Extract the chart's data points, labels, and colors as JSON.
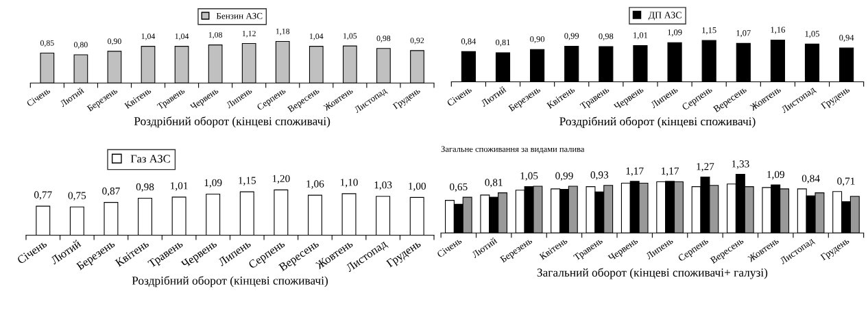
{
  "chart_data": [
    {
      "type": "bar",
      "xlabel": "Роздрібний оборот (кінцеві споживачі)",
      "categories": [
        "Січень",
        "Лютий",
        "Березень",
        "Квітень",
        "Травень",
        "Червень",
        "Липень",
        "Серпень",
        "Вересень",
        "Жовтень",
        "Листопад",
        "Грудень"
      ],
      "legend": "top",
      "series": [
        {
          "name": "Бензин АЗС",
          "color": "#c0c0c0",
          "values": [
            0.85,
            0.8,
            0.9,
            1.04,
            1.04,
            1.08,
            1.12,
            1.18,
            1.04,
            1.05,
            0.98,
            0.92
          ],
          "value_labels": [
            "0,85",
            "0,80",
            "0,90",
            "1,04",
            "1,04",
            "1,08",
            "1,12",
            "1,18",
            "1,04",
            "1,05",
            "0,98",
            "0,92"
          ]
        }
      ]
    },
    {
      "type": "bar",
      "xlabel": "Роздрібний оборот (кінцеві споживачі)",
      "categories": [
        "Січень",
        "Лютий",
        "Березень",
        "Квітень",
        "Травень",
        "Червень",
        "Липень",
        "Серпень",
        "Вересень",
        "Жовтень",
        "Листопад",
        "Грудень"
      ],
      "legend": "top",
      "series": [
        {
          "name": "ДП АЗС",
          "color": "#000000",
          "values": [
            0.84,
            0.81,
            0.9,
            0.99,
            0.98,
            1.01,
            1.09,
            1.15,
            1.07,
            1.16,
            1.05,
            0.94
          ],
          "value_labels": [
            "0,84",
            "0,81",
            "0,90",
            "0,99",
            "0,98",
            "1,01",
            "1,09",
            "1,15",
            "1,07",
            "1,16",
            "1,05",
            "0,94"
          ]
        }
      ]
    },
    {
      "type": "bar",
      "xlabel": "Роздрібний оборот (кінцеві споживачі)",
      "categories": [
        "Січень",
        "Лютий",
        "Березень",
        "Квітень",
        "Травень",
        "Червень",
        "Липень",
        "Серпень",
        "Вересень",
        "Жовтень",
        "Листопад",
        "Грудень"
      ],
      "legend": "top left",
      "series": [
        {
          "name": "Газ АЗС",
          "color": "#ffffff",
          "values": [
            0.77,
            0.75,
            0.87,
            0.98,
            1.01,
            1.09,
            1.15,
            1.2,
            1.06,
            1.1,
            1.03,
            1.0
          ],
          "value_labels": [
            "0,77",
            "0,75",
            "0,87",
            "0,98",
            "1,01",
            "1,09",
            "1,15",
            "1,20",
            "1,06",
            "1,10",
            "1,03",
            "1,00"
          ]
        }
      ]
    },
    {
      "type": "bar",
      "title": "Загальне споживання за видами палива",
      "xlabel": "Загальний оборот (кінцеві споживачі+ галузі)",
      "categories": [
        "Січень",
        "Лютий",
        "Березень",
        "Квітень",
        "Травень",
        "Червень",
        "Липень",
        "Серпень",
        "Вересень",
        "Жовтень",
        "Листопад",
        "Грудень"
      ],
      "series": [
        {
          "color": "#ffffff",
          "values": [
            0.74,
            0.86,
            0.97,
            1.0,
            1.05,
            1.13,
            1.16,
            1.05,
            1.11,
            1.03,
            1.0,
            0.94
          ]
        },
        {
          "color": "#000000",
          "values": [
            0.65,
            0.81,
            1.05,
            0.99,
            0.93,
            1.17,
            1.17,
            1.27,
            1.33,
            1.09,
            0.84,
            0.71
          ],
          "value_labels": [
            "0,65",
            "0,81",
            "1,05",
            "0,99",
            "0,93",
            "1,17",
            "1,17",
            "1,27",
            "1,33",
            "1,09",
            "0,84",
            "0,71"
          ]
        },
        {
          "color": "#999999",
          "values": [
            0.81,
            0.91,
            1.06,
            1.06,
            1.08,
            1.13,
            1.16,
            1.08,
            1.05,
            1.0,
            0.91,
            0.83
          ]
        }
      ]
    }
  ]
}
